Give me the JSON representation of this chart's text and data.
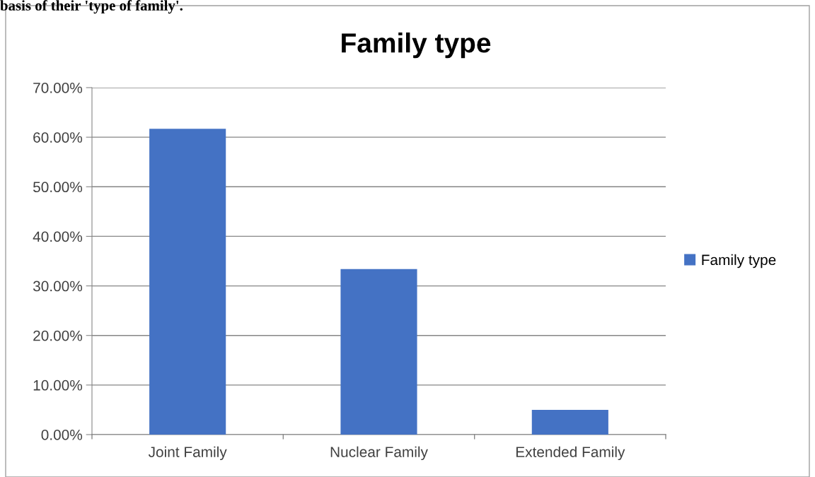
{
  "chart_data": {
    "type": "bar",
    "title": "Family type",
    "annotations": [
      "basis of their 'type of family'."
    ],
    "categories": [
      "Joint Family",
      "Nuclear Family",
      "Extended Family"
    ],
    "series": [
      {
        "name": "Family type",
        "color": "#4472c4",
        "values": [
          61.7,
          33.4,
          5
        ]
      }
    ],
    "ylim": [
      0,
      70
    ],
    "yticks": [
      {
        "value": 0,
        "label": "0.00%"
      },
      {
        "value": 10,
        "label": "10.00%"
      },
      {
        "value": 20,
        "label": "20.00%"
      },
      {
        "value": 30,
        "label": "30.00%"
      },
      {
        "value": 40,
        "label": "40.00%"
      },
      {
        "value": 50,
        "label": "50.00%"
      },
      {
        "value": 60,
        "label": "60.00%"
      },
      {
        "value": 70,
        "label": "70.00%"
      }
    ],
    "grid": "y",
    "legend": "right"
  }
}
